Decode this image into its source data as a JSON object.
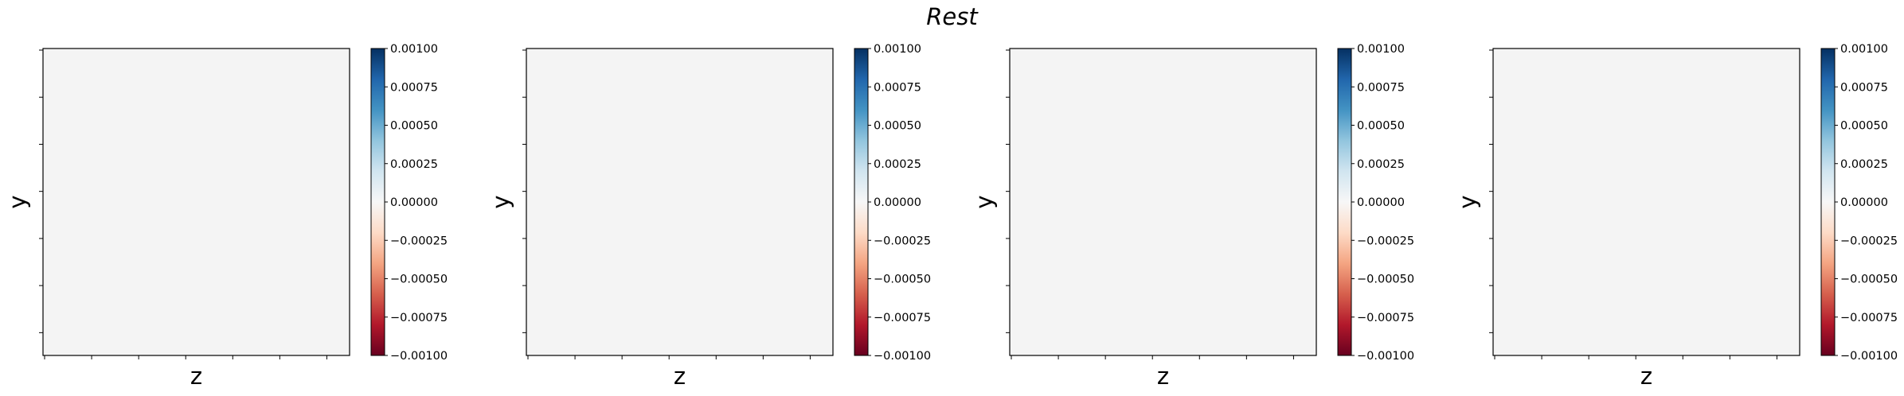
{
  "suptitle": "Rest",
  "colors": {
    "heatmap_fill": "#f4f4f4",
    "axes_edge": "#000000",
    "colormap": "RdBu",
    "colormap_stops": [
      "#67001f",
      "#b2182b",
      "#d6604d",
      "#f4a582",
      "#fddbc7",
      "#f7f7f7",
      "#d1e5f0",
      "#92c5de",
      "#4393c3",
      "#2166ac",
      "#053061"
    ]
  },
  "chart_data": [
    {
      "type": "heatmap",
      "title": "",
      "xlabel": "z",
      "ylabel": "y",
      "values": [
        [
          0
        ]
      ],
      "colorbar": {
        "vmin": -0.001,
        "vmax": 0.001,
        "tick_labels": [
          "0.00100",
          "0.00075",
          "0.00050",
          "0.00025",
          "0.00000",
          "−0.00025",
          "−0.00050",
          "−0.00075",
          "−0.00100"
        ]
      },
      "x_tick_count": 7,
      "y_tick_count": 7,
      "x_tick_labels_shown": false,
      "y_tick_labels_shown": false
    },
    {
      "type": "heatmap",
      "title": "",
      "xlabel": "z",
      "ylabel": "y",
      "values": [
        [
          0
        ]
      ],
      "colorbar": {
        "vmin": -0.001,
        "vmax": 0.001,
        "tick_labels": [
          "0.00100",
          "0.00075",
          "0.00050",
          "0.00025",
          "0.00000",
          "−0.00025",
          "−0.00050",
          "−0.00075",
          "−0.00100"
        ]
      },
      "x_tick_count": 7,
      "y_tick_count": 7,
      "x_tick_labels_shown": false,
      "y_tick_labels_shown": false
    },
    {
      "type": "heatmap",
      "title": "",
      "xlabel": "z",
      "ylabel": "y",
      "values": [
        [
          0
        ]
      ],
      "colorbar": {
        "vmin": -0.001,
        "vmax": 0.001,
        "tick_labels": [
          "0.00100",
          "0.00075",
          "0.00050",
          "0.00025",
          "0.00000",
          "−0.00025",
          "−0.00050",
          "−0.00075",
          "−0.00100"
        ]
      },
      "x_tick_count": 7,
      "y_tick_count": 7,
      "x_tick_labels_shown": false,
      "y_tick_labels_shown": false
    },
    {
      "type": "heatmap",
      "title": "",
      "xlabel": "z",
      "ylabel": "y",
      "values": [
        [
          0
        ]
      ],
      "colorbar": {
        "vmin": -0.001,
        "vmax": 0.001,
        "tick_labels": [
          "0.00100",
          "0.00075",
          "0.00050",
          "0.00025",
          "0.00000",
          "−0.00025",
          "−0.00050",
          "−0.00075",
          "−0.00100"
        ]
      },
      "x_tick_count": 7,
      "y_tick_count": 7,
      "x_tick_labels_shown": false,
      "y_tick_labels_shown": false
    }
  ]
}
